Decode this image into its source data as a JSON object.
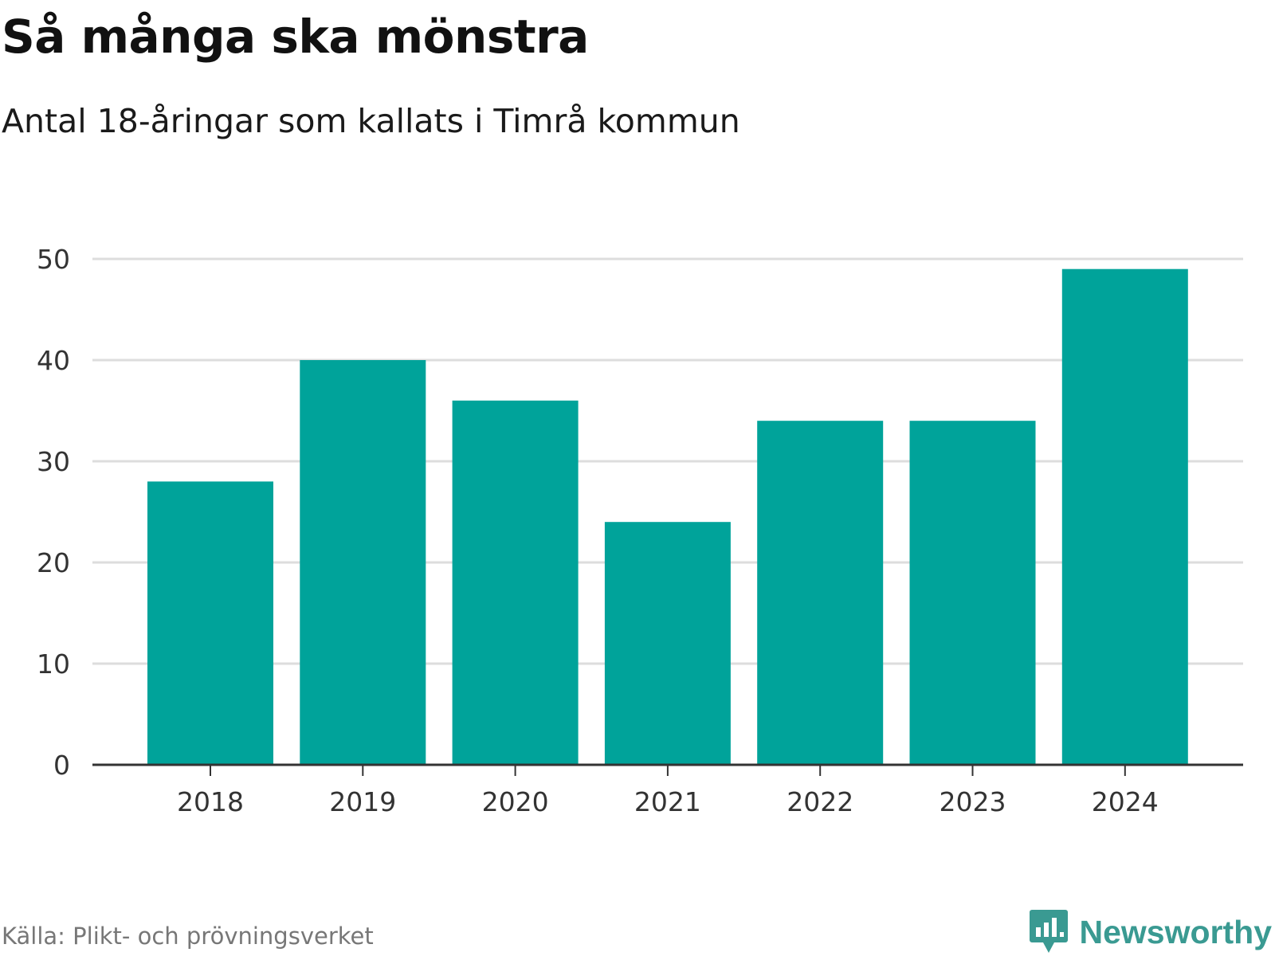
{
  "chart_data": {
    "type": "bar",
    "title": "Så många ska mönstra",
    "subtitle": "Antal 18-åringar som kallats i Timrå kommun",
    "categories": [
      "2018",
      "2019",
      "2020",
      "2021",
      "2022",
      "2023",
      "2024"
    ],
    "values": [
      28,
      40,
      36,
      24,
      34,
      34,
      49
    ],
    "ylim": [
      0,
      50
    ],
    "yticks": [
      0,
      10,
      20,
      30,
      40,
      50
    ],
    "xlabel": "",
    "ylabel": "",
    "grid": true,
    "legend": "none",
    "bar_color": "#00a39a",
    "grid_color": "#dddddd",
    "axis_color": "#333333"
  },
  "footer": {
    "source": "Källa: Plikt- och prövningsverket",
    "brand": "Newsworthy",
    "brand_icon": "newsworthy-logo-icon",
    "brand_color": "#3a9a92"
  }
}
